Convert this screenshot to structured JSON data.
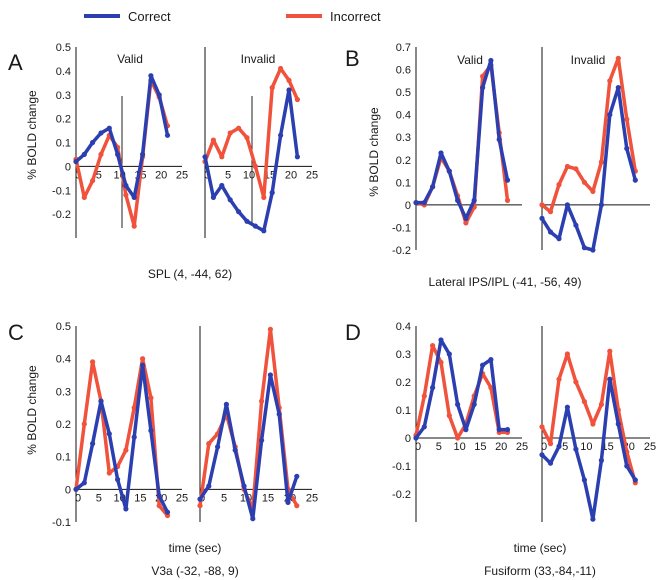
{
  "legend": [
    {
      "name": "Correct",
      "color": "#2b3fb0"
    },
    {
      "name": "Incorrect",
      "color": "#f0523c"
    }
  ],
  "chart_data": [
    {
      "type": "line",
      "panel": "A",
      "caption": "SPL (4, -44, 62)",
      "ylabel": "% BOLD change",
      "xlabel": "",
      "ylim": [
        -0.3,
        0.5
      ],
      "yticks": [
        "-0.2",
        "-0.1",
        "0",
        "0.1",
        "0.2",
        "0.3",
        "0.4",
        "0.5"
      ],
      "xticks": [
        "0",
        "5",
        "10",
        "15",
        "20",
        "25"
      ],
      "subplots": [
        {
          "title": "Valid",
          "series": [
            {
              "name": "Correct",
              "x": [
                0,
                2,
                4,
                6,
                8,
                10,
                12,
                14,
                16,
                18,
                20,
                22
              ],
              "y": [
                0.02,
                0.05,
                0.1,
                0.14,
                0.16,
                0.05,
                -0.08,
                -0.13,
                0.05,
                0.38,
                0.3,
                0.13
              ]
            },
            {
              "name": "Incorrect",
              "x": [
                0,
                2,
                4,
                6,
                8,
                10,
                12,
                14,
                16,
                18,
                20,
                22
              ],
              "y": [
                0.03,
                -0.13,
                -0.06,
                0.05,
                0.13,
                0.08,
                -0.12,
                -0.25,
                0.04,
                0.36,
                0.29,
                0.17
              ]
            }
          ]
        },
        {
          "title": "Invalid",
          "series": [
            {
              "name": "Correct",
              "x": [
                0,
                2,
                4,
                6,
                8,
                10,
                12,
                14,
                16,
                18,
                20,
                22
              ],
              "y": [
                0.04,
                -0.13,
                -0.08,
                -0.14,
                -0.19,
                -0.23,
                -0.25,
                -0.27,
                -0.11,
                0.13,
                0.32,
                0.04
              ]
            },
            {
              "name": "Incorrect",
              "x": [
                0,
                2,
                4,
                6,
                8,
                10,
                12,
                14,
                16,
                18,
                20,
                22
              ],
              "y": [
                0.02,
                0.11,
                0.04,
                0.14,
                0.16,
                0.12,
                0.0,
                -0.13,
                0.33,
                0.41,
                0.36,
                0.28
              ]
            }
          ]
        }
      ]
    },
    {
      "type": "line",
      "panel": "B",
      "caption": "Lateral IPS/IPL (-41, -56, 49)",
      "ylabel": "% BOLD change",
      "xlabel": "",
      "ylim": [
        -0.2,
        0.7
      ],
      "yticks": [
        "-0.2",
        "-0.1",
        "0",
        "0.1",
        "0.2",
        "0.3",
        "0.4",
        "0.5",
        "0.6",
        "0.7"
      ],
      "xticks": [],
      "subplots": [
        {
          "title": "Valid",
          "series": [
            {
              "name": "Correct",
              "x": [
                0,
                2,
                4,
                6,
                8,
                10,
                12,
                14,
                16,
                18,
                20,
                22
              ],
              "y": [
                0.01,
                0.01,
                0.08,
                0.23,
                0.15,
                0.02,
                -0.06,
                0.02,
                0.52,
                0.64,
                0.29,
                0.11
              ]
            },
            {
              "name": "Incorrect",
              "x": [
                0,
                2,
                4,
                6,
                8,
                10,
                12,
                14,
                16,
                18,
                20,
                22
              ],
              "y": [
                0.01,
                0.0,
                0.08,
                0.21,
                0.15,
                0.04,
                -0.08,
                -0.01,
                0.57,
                0.62,
                0.32,
                0.02
              ]
            }
          ]
        },
        {
          "title": "Invalid",
          "series": [
            {
              "name": "Correct",
              "x": [
                0,
                2,
                4,
                6,
                8,
                10,
                12,
                14,
                16,
                18,
                20,
                22
              ],
              "y": [
                -0.06,
                -0.12,
                -0.15,
                0.0,
                -0.09,
                -0.19,
                -0.2,
                0.0,
                0.4,
                0.52,
                0.25,
                0.11
              ]
            },
            {
              "name": "Incorrect",
              "x": [
                0,
                2,
                4,
                6,
                8,
                10,
                12,
                14,
                16,
                18,
                20,
                22
              ],
              "y": [
                0.0,
                -0.03,
                0.09,
                0.17,
                0.16,
                0.1,
                0.06,
                0.19,
                0.55,
                0.65,
                0.38,
                0.15
              ]
            }
          ]
        }
      ]
    },
    {
      "type": "line",
      "panel": "C",
      "caption": "V3a (-32, -88, 9)",
      "ylabel": "% BOLD change",
      "xlabel": "time (sec)",
      "ylim": [
        -0.1,
        0.5
      ],
      "yticks": [
        "-0.1",
        "0",
        "0.1",
        "0.2",
        "0.3",
        "0.4",
        "0.5"
      ],
      "xticks": [
        "0",
        "5",
        "10",
        "15",
        "20",
        "25"
      ],
      "subplots": [
        {
          "title": "",
          "series": [
            {
              "name": "Correct",
              "x": [
                0,
                2,
                4,
                6,
                8,
                10,
                12,
                14,
                16,
                18,
                20,
                22
              ],
              "y": [
                0.0,
                0.02,
                0.14,
                0.27,
                0.17,
                0.03,
                -0.06,
                0.16,
                0.38,
                0.18,
                -0.02,
                -0.07
              ]
            },
            {
              "name": "Incorrect",
              "x": [
                0,
                2,
                4,
                6,
                8,
                10,
                12,
                14,
                16,
                18,
                20,
                22
              ],
              "y": [
                0.0,
                0.2,
                0.39,
                0.27,
                0.05,
                0.07,
                0.12,
                0.25,
                0.4,
                0.28,
                -0.05,
                -0.08
              ]
            }
          ]
        },
        {
          "title": "",
          "series": [
            {
              "name": "Correct",
              "x": [
                0,
                2,
                4,
                6,
                8,
                10,
                12,
                14,
                16,
                18,
                20,
                22
              ],
              "y": [
                -0.03,
                0.01,
                0.13,
                0.26,
                0.12,
                0.01,
                -0.09,
                0.15,
                0.35,
                0.23,
                -0.04,
                0.04
              ]
            },
            {
              "name": "Incorrect",
              "x": [
                0,
                2,
                4,
                6,
                8,
                10,
                12,
                14,
                16,
                18,
                20,
                22
              ],
              "y": [
                -0.05,
                0.14,
                0.17,
                0.23,
                0.13,
                0.0,
                -0.06,
                0.27,
                0.49,
                0.25,
                0.0,
                -0.05
              ]
            }
          ]
        }
      ]
    },
    {
      "type": "line",
      "panel": "D",
      "caption": "Fusiform (33,-84,-11)",
      "ylabel": "",
      "xlabel": "time (sec)",
      "ylim": [
        -0.3,
        0.4
      ],
      "yticks": [
        "-0.2",
        "-0.1",
        "0",
        "0.1",
        "0.2",
        "0.3",
        "0.4"
      ],
      "xticks": [
        "0",
        "5",
        "10",
        "15",
        "20",
        "25"
      ],
      "subplots": [
        {
          "title": "",
          "series": [
            {
              "name": "Correct",
              "x": [
                0,
                2,
                4,
                6,
                8,
                10,
                12,
                14,
                16,
                18,
                20,
                22
              ],
              "y": [
                0.0,
                0.04,
                0.18,
                0.35,
                0.3,
                0.12,
                0.03,
                0.12,
                0.26,
                0.28,
                0.03,
                0.03
              ]
            },
            {
              "name": "Incorrect",
              "x": [
                0,
                2,
                4,
                6,
                8,
                10,
                12,
                14,
                16,
                18,
                20,
                22
              ],
              "y": [
                0.01,
                0.15,
                0.33,
                0.27,
                0.08,
                0.0,
                0.05,
                0.15,
                0.23,
                0.18,
                0.02,
                0.02
              ]
            }
          ]
        },
        {
          "title": "",
          "series": [
            {
              "name": "Correct",
              "x": [
                0,
                2,
                4,
                6,
                8,
                10,
                12,
                14,
                16,
                18,
                20,
                22
              ],
              "y": [
                -0.06,
                -0.09,
                -0.03,
                0.11,
                -0.04,
                -0.15,
                -0.29,
                -0.08,
                0.21,
                0.05,
                -0.1,
                -0.15
              ]
            },
            {
              "name": "Incorrect",
              "x": [
                0,
                2,
                4,
                6,
                8,
                10,
                12,
                14,
                16,
                18,
                20,
                22
              ],
              "y": [
                0.04,
                -0.02,
                0.21,
                0.3,
                0.2,
                0.13,
                0.05,
                0.12,
                0.31,
                0.1,
                -0.05,
                -0.16
              ]
            }
          ]
        }
      ]
    }
  ]
}
